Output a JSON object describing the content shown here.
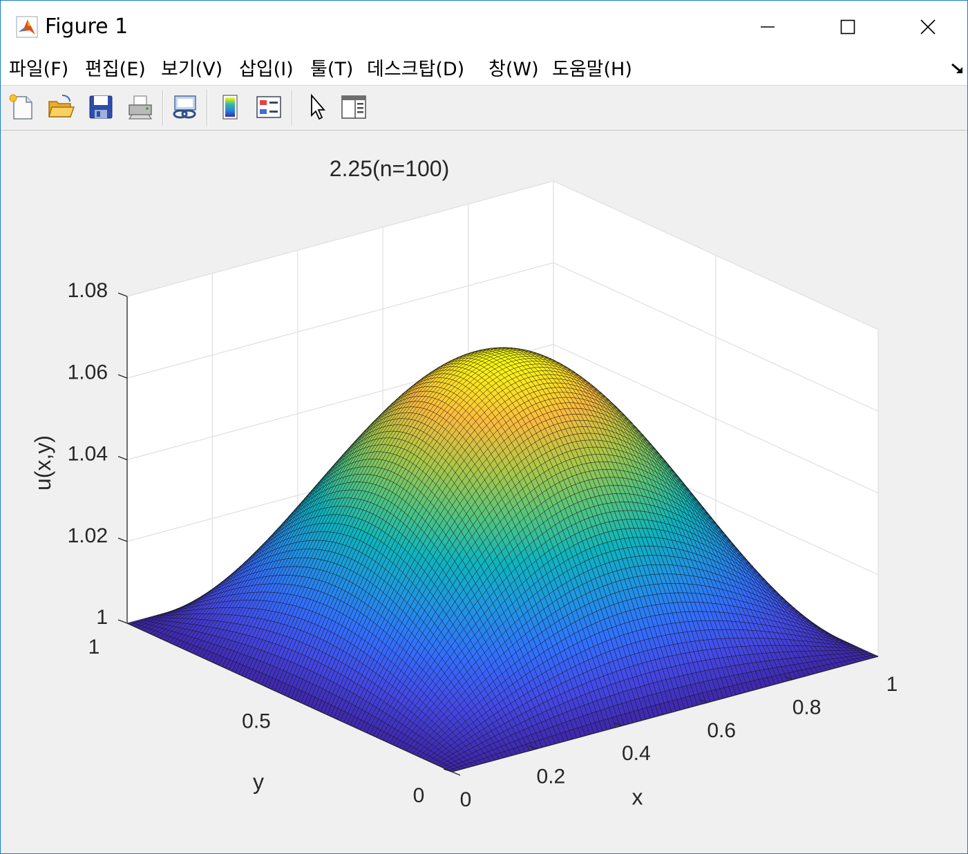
{
  "window": {
    "title": "Figure 1",
    "controls": [
      "minimize",
      "maximize",
      "close"
    ]
  },
  "menu": [
    "파일(F)",
    "편집(E)",
    "보기(V)",
    "삽입(I)",
    "툴(T)",
    "데스크탑(D)",
    "창(W)",
    "도움말(H)"
  ],
  "toolbar": [
    "new-figure-icon",
    "open-file-icon",
    "save-icon",
    "print-icon",
    "link-plot-icon",
    "colorbar-icon",
    "legend-icon",
    "edit-plot-icon",
    "property-inspector-icon"
  ],
  "chart_data": {
    "type": "surface",
    "title": "2.25(n=100)",
    "xlabel": "x",
    "ylabel": "y",
    "zlabel": "u(x,y)",
    "xlim": [
      0,
      1
    ],
    "ylim": [
      0,
      1
    ],
    "zlim": [
      1,
      1.08
    ],
    "xticks": [
      "0",
      "0.2",
      "0.4",
      "0.6",
      "0.8",
      "1"
    ],
    "yticks": [
      "0",
      "0.5",
      "1"
    ],
    "zticks": [
      "1",
      "1.02",
      "1.04",
      "1.06",
      "1.08"
    ],
    "surface": "u(x,y) = 1 + 0.07 sin(πx) sin(πy)",
    "grid_points": 100,
    "z_min": 1,
    "z_max": 1.07,
    "colormap": "parula",
    "grid": true
  }
}
